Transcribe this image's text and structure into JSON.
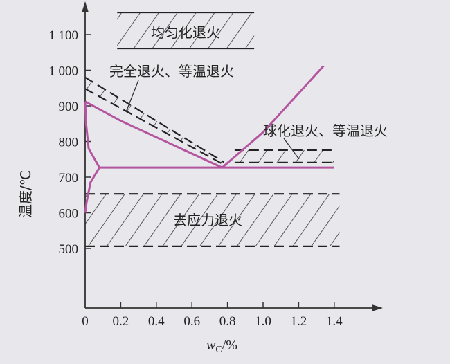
{
  "chart_data": {
    "type": "line",
    "title": "",
    "xlabel": "wC/%",
    "xlabel_main": "w",
    "xlabel_sub": "C",
    "xlabel_unit": "/%",
    "ylabel": "温度/℃",
    "xlim": [
      0,
      1.5
    ],
    "ylim": [
      400,
      1200
    ],
    "x_ticks": [
      0,
      0.2,
      0.4,
      0.6,
      0.8,
      1.0,
      1.2,
      1.4
    ],
    "x_tick_labels": [
      "0",
      "0.2",
      "0.4",
      "0.6",
      "0.8",
      "1.0",
      "1.2",
      "1.4"
    ],
    "y_ticks": [
      500,
      600,
      700,
      800,
      900,
      1000,
      1100
    ],
    "y_tick_labels": [
      "500",
      "600",
      "700",
      "800",
      "900",
      "1 000",
      "1 100"
    ],
    "grid": false,
    "line_color": "#b4559f",
    "series": [
      {
        "points": [
          [
            0,
            912
          ],
          [
            0.2,
            858
          ],
          [
            0.4,
            812
          ],
          [
            0.6,
            766
          ],
          [
            0.77,
            727
          ]
        ]
      },
      {
        "points": [
          [
            0.77,
            727
          ],
          [
            1.0,
            826
          ],
          [
            1.34,
            1012
          ]
        ]
      },
      {
        "points": [
          [
            0.08,
            727
          ],
          [
            1.4,
            727
          ]
        ]
      },
      {
        "points": [
          [
            0,
            912
          ],
          [
            0.005,
            850
          ],
          [
            0.02,
            780
          ],
          [
            0.08,
            727
          ]
        ]
      },
      {
        "points": [
          [
            0.08,
            727
          ],
          [
            0.03,
            685
          ],
          [
            0.008,
            630
          ],
          [
            0,
            600
          ]
        ]
      }
    ],
    "regions": [
      {
        "label": "均匀化退火",
        "x": [
          0.18,
          0.95
        ],
        "t_low": [
          1061,
          1061
        ],
        "t_high": [
          1162,
          1162
        ],
        "border": "solid"
      },
      {
        "label": "完全退火、等温退火",
        "polygon": [
          [
            0,
            980
          ],
          [
            0.78,
            742
          ],
          [
            0.78,
            735
          ],
          [
            0,
            948
          ]
        ],
        "border": "dashed"
      },
      {
        "label": "球化退火、等温退火",
        "x": [
          0.84,
          1.4
        ],
        "t_low": [
          741,
          741
        ],
        "t_high": [
          776,
          776
        ],
        "border": "dashed"
      },
      {
        "label": "去应力退火",
        "x": [
          0.0,
          1.43
        ],
        "t_low": [
          506,
          506
        ],
        "t_high": [
          653,
          653
        ],
        "border": "dashed"
      }
    ]
  }
}
